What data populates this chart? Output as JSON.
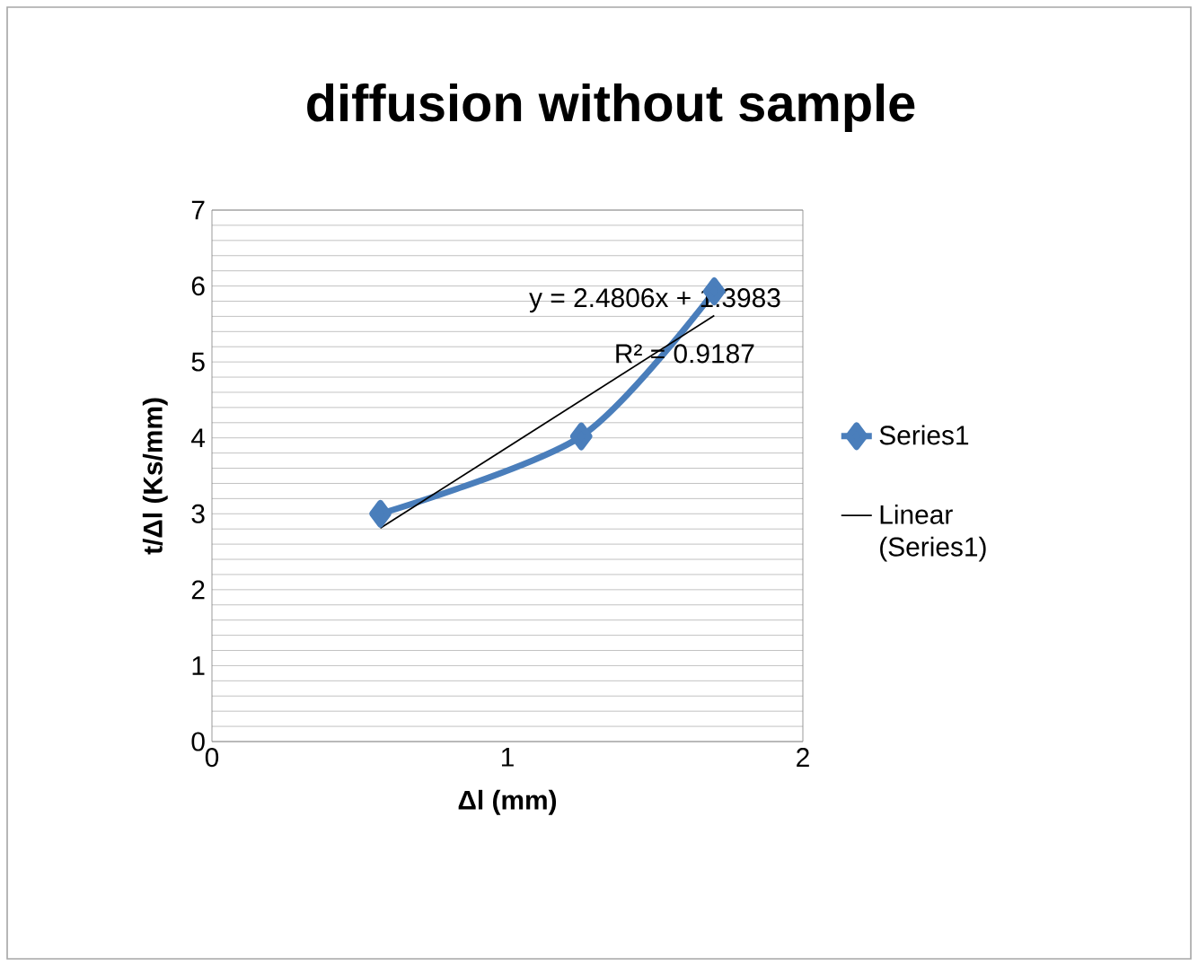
{
  "chart_data": {
    "type": "line",
    "title": "diffusion without sample",
    "xlabel": "Δl (mm)",
    "ylabel": "t/Δl (Ks/mm)",
    "xlim": [
      0,
      2
    ],
    "xticks": [
      0,
      1,
      2
    ],
    "ylim": [
      0,
      7
    ],
    "yticks": [
      0,
      1,
      2,
      3,
      4,
      5,
      6,
      7
    ],
    "grid": "y",
    "legend": "right",
    "series": [
      {
        "name": "Series1",
        "color": "#4a7ebb",
        "x": [
          0.57,
          1.25,
          1.7
        ],
        "values": [
          3.0,
          4.02,
          5.93
        ],
        "marker": "diamond",
        "line_style": "solid"
      },
      {
        "name": "Linear (Series1)",
        "type": "line",
        "color": "#000000",
        "x": [
          0.57,
          1.7
        ],
        "values": [
          2.81,
          5.61
        ],
        "marker": "none",
        "line_style": "solid"
      }
    ],
    "annotations": [
      "y = 2.4806x + 1.3983",
      "R² = 0.9187"
    ]
  }
}
